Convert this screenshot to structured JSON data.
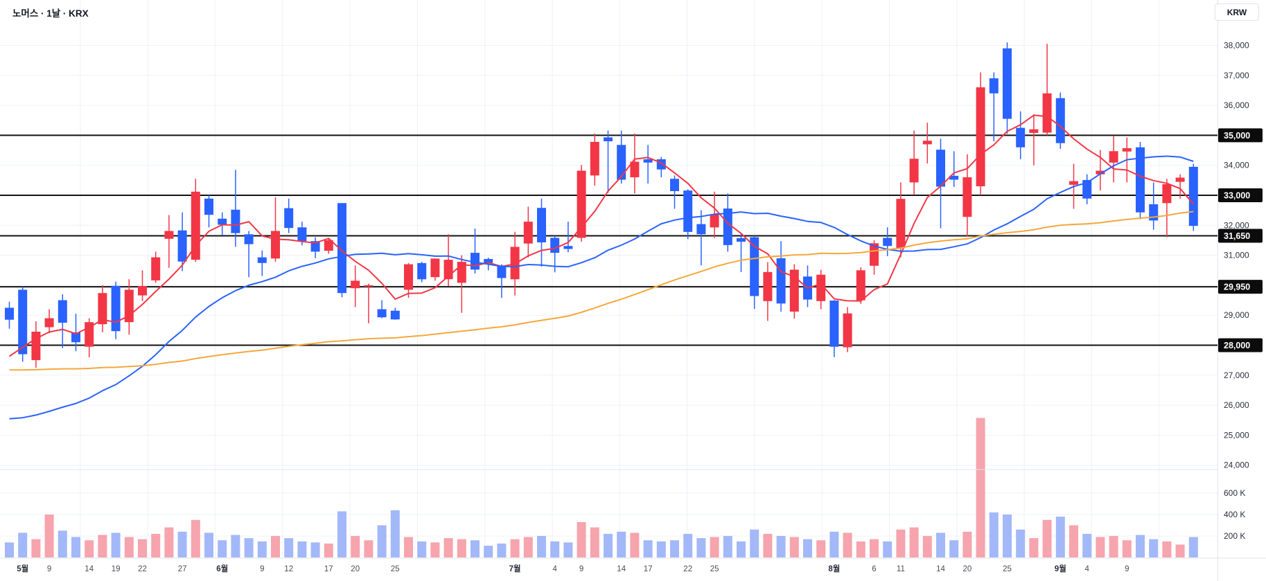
{
  "header": {
    "title": "노머스 · 1날 · KRX"
  },
  "price_axis": {
    "currency_button": "KRW",
    "ticks": [
      {
        "value": 38000,
        "label": "38,000"
      },
      {
        "value": 37000,
        "label": "37,000"
      },
      {
        "value": 36000,
        "label": "36,000"
      },
      {
        "value": 35000,
        "label": "35,000"
      },
      {
        "value": 34000,
        "label": "34,000"
      },
      {
        "value": 33000,
        "label": "33,000"
      },
      {
        "value": 32000,
        "label": "32,000"
      },
      {
        "value": 31000,
        "label": "31,000"
      },
      {
        "value": 29000,
        "label": "29,000"
      },
      {
        "value": 28000,
        "label": "28,000"
      },
      {
        "value": 27000,
        "label": "27,000"
      },
      {
        "value": 26000,
        "label": "26,000"
      },
      {
        "value": 25000,
        "label": "25,000"
      },
      {
        "value": 24000,
        "label": "24,000"
      }
    ]
  },
  "volume_axis": {
    "ticks": [
      {
        "value": 600,
        "label": "600 K"
      },
      {
        "value": 400,
        "label": "400 K"
      },
      {
        "value": 200,
        "label": "200 K"
      }
    ]
  },
  "chart_data": {
    "type": "candlestick+volume",
    "symbol": "노머스",
    "interval": "1날",
    "exchange": "KRX",
    "currency": "KRW",
    "price_range": [
      24000,
      38000
    ],
    "grid": true,
    "horizontal_levels": [
      {
        "value": 35000,
        "label": "35,000"
      },
      {
        "value": 33000,
        "label": "33,000"
      },
      {
        "value": 31650,
        "label": "31,650"
      },
      {
        "value": 29950,
        "label": "29,950"
      },
      {
        "value": 28000,
        "label": "28,000"
      }
    ],
    "x_labels": [
      {
        "index": 1,
        "text": "5월",
        "bold": true
      },
      {
        "index": 3,
        "text": "9"
      },
      {
        "index": 6,
        "text": "14"
      },
      {
        "index": 8,
        "text": "19"
      },
      {
        "index": 10,
        "text": "22"
      },
      {
        "index": 13,
        "text": "27"
      },
      {
        "index": 16,
        "text": "6월",
        "bold": true
      },
      {
        "index": 19,
        "text": "9"
      },
      {
        "index": 21,
        "text": "12"
      },
      {
        "index": 24,
        "text": "17"
      },
      {
        "index": 26,
        "text": "20"
      },
      {
        "index": 29,
        "text": "25"
      },
      {
        "index": 38,
        "text": "7월",
        "bold": true
      },
      {
        "index": 41,
        "text": "4"
      },
      {
        "index": 43,
        "text": "9"
      },
      {
        "index": 46,
        "text": "14"
      },
      {
        "index": 48,
        "text": "17"
      },
      {
        "index": 51,
        "text": "22"
      },
      {
        "index": 53,
        "text": "25"
      },
      {
        "index": 62,
        "text": "8월",
        "bold": true
      },
      {
        "index": 65,
        "text": "6"
      },
      {
        "index": 67,
        "text": "11"
      },
      {
        "index": 70,
        "text": "14"
      },
      {
        "index": 72,
        "text": "20"
      },
      {
        "index": 75,
        "text": "25"
      },
      {
        "index": 79,
        "text": "9월",
        "bold": true
      },
      {
        "index": 81,
        "text": "4"
      },
      {
        "index": 84,
        "text": "9"
      }
    ],
    "candles_ohlcv": [
      [
        29250,
        29450,
        28550,
        28850,
        140
      ],
      [
        29850,
        29950,
        27450,
        27700,
        230
      ],
      [
        27500,
        28800,
        27250,
        28450,
        170
      ],
      [
        28600,
        29200,
        28400,
        28900,
        400
      ],
      [
        29500,
        29700,
        27900,
        28750,
        250
      ],
      [
        28430,
        29050,
        27800,
        28100,
        190
      ],
      [
        27950,
        28900,
        27600,
        28770,
        160
      ],
      [
        28700,
        30000,
        28430,
        29740,
        210
      ],
      [
        29980,
        30120,
        28200,
        28470,
        230
      ],
      [
        28770,
        30200,
        28350,
        29850,
        190
      ],
      [
        29660,
        30500,
        29470,
        29970,
        170
      ],
      [
        30160,
        31120,
        30080,
        30930,
        220
      ],
      [
        31550,
        32340,
        30580,
        31810,
        280
      ],
      [
        31830,
        32430,
        30470,
        30790,
        240
      ],
      [
        30850,
        33550,
        30780,
        33120,
        350
      ],
      [
        32890,
        33010,
        31930,
        32350,
        230
      ],
      [
        32220,
        32430,
        31660,
        32020,
        160
      ],
      [
        32520,
        33850,
        31280,
        31740,
        210
      ],
      [
        31700,
        31810,
        30270,
        31370,
        180
      ],
      [
        30930,
        31160,
        30310,
        30740,
        150
      ],
      [
        30890,
        32930,
        30780,
        31810,
        200
      ],
      [
        32570,
        32890,
        31740,
        31910,
        180
      ],
      [
        31930,
        32120,
        31330,
        31470,
        150
      ],
      [
        31470,
        31600,
        30900,
        31120,
        140
      ],
      [
        31150,
        31550,
        31050,
        31500,
        130
      ],
      [
        32740,
        32740,
        29600,
        29740,
        430
      ],
      [
        29900,
        30660,
        29270,
        30150,
        200
      ],
      [
        29950,
        30050,
        28730,
        30000,
        160
      ],
      [
        29200,
        29500,
        28900,
        28930,
        300
      ],
      [
        29150,
        29250,
        28850,
        28860,
        440
      ],
      [
        29850,
        30740,
        29580,
        30700,
        190
      ],
      [
        30740,
        30780,
        30100,
        30200,
        150
      ],
      [
        30270,
        30890,
        30150,
        30890,
        140
      ],
      [
        30200,
        31700,
        29970,
        30850,
        180
      ],
      [
        30080,
        31000,
        29080,
        30780,
        170
      ],
      [
        31080,
        31890,
        30390,
        30520,
        160
      ],
      [
        30875,
        30920,
        30500,
        30740,
        110
      ],
      [
        30660,
        30700,
        29580,
        30240,
        130
      ],
      [
        30200,
        31780,
        29660,
        31280,
        170
      ],
      [
        31390,
        32620,
        30930,
        32120,
        190
      ],
      [
        32580,
        32890,
        30620,
        31430,
        200
      ],
      [
        31580,
        31650,
        30430,
        31080,
        150
      ],
      [
        31310,
        32120,
        31100,
        31210,
        140
      ],
      [
        31580,
        34010,
        31450,
        33820,
        330
      ],
      [
        33660,
        35060,
        33320,
        34780,
        280
      ],
      [
        34930,
        35160,
        33080,
        34800,
        220
      ],
      [
        34680,
        35160,
        33390,
        33520,
        240
      ],
      [
        33600,
        35060,
        33060,
        34120,
        230
      ],
      [
        34200,
        34680,
        33390,
        34090,
        160
      ],
      [
        34200,
        34280,
        33600,
        33860,
        150
      ],
      [
        33550,
        33660,
        32550,
        33140,
        160
      ],
      [
        33160,
        33200,
        31540,
        31780,
        220
      ],
      [
        32040,
        32500,
        30660,
        31700,
        180
      ],
      [
        31930,
        33120,
        31580,
        32370,
        190
      ],
      [
        32560,
        33060,
        31120,
        31340,
        200
      ],
      [
        31570,
        31740,
        30440,
        31450,
        150
      ],
      [
        31600,
        31650,
        29210,
        29640,
        260
      ],
      [
        29470,
        30770,
        28810,
        30440,
        220
      ],
      [
        30900,
        31470,
        29120,
        29390,
        200
      ],
      [
        29120,
        30700,
        28890,
        30520,
        190
      ],
      [
        30290,
        30660,
        29270,
        29520,
        170
      ],
      [
        29470,
        30510,
        29200,
        30350,
        160
      ],
      [
        29490,
        29500,
        27600,
        27950,
        240
      ],
      [
        27930,
        29270,
        27770,
        29060,
        230
      ],
      [
        29500,
        30600,
        29380,
        30500,
        150
      ],
      [
        30650,
        31500,
        30350,
        31400,
        170
      ],
      [
        31580,
        31930,
        30970,
        31310,
        150
      ],
      [
        31240,
        33430,
        30930,
        32880,
        260
      ],
      [
        33430,
        35160,
        33010,
        34220,
        280
      ],
      [
        34700,
        35420,
        34060,
        34820,
        200
      ],
      [
        34520,
        34890,
        31900,
        33290,
        230
      ],
      [
        33650,
        34470,
        33280,
        33520,
        160
      ],
      [
        32280,
        34370,
        31620,
        33600,
        240
      ],
      [
        33300,
        37100,
        33000,
        36600,
        1300
      ],
      [
        36900,
        37100,
        34800,
        36400,
        420
      ],
      [
        37900,
        38100,
        35050,
        35550,
        400
      ],
      [
        35250,
        35800,
        34200,
        34600,
        260
      ],
      [
        35080,
        35700,
        34000,
        35200,
        180
      ],
      [
        35090,
        38050,
        35000,
        36400,
        350
      ],
      [
        36240,
        36430,
        34550,
        34740,
        380
      ],
      [
        33350,
        34050,
        32550,
        33470,
        300
      ],
      [
        33510,
        33700,
        32700,
        32890,
        220
      ],
      [
        33700,
        34510,
        33160,
        33820,
        190
      ],
      [
        34090,
        34970,
        33430,
        34470,
        200
      ],
      [
        34460,
        34930,
        33430,
        34570,
        160
      ],
      [
        34600,
        34780,
        32200,
        32430,
        210
      ],
      [
        32700,
        33430,
        31850,
        32160,
        170
      ],
      [
        32740,
        33550,
        31600,
        33370,
        150
      ],
      [
        33450,
        33700,
        32890,
        33590,
        120
      ],
      [
        33950,
        34050,
        31810,
        31980,
        190
      ]
    ],
    "volume_unit": "K",
    "ma_overlays": [
      {
        "name": "ma-fast",
        "period": 5,
        "color": "#f23645"
      },
      {
        "name": "ma-mid",
        "period": 20,
        "color": "#2962ff"
      },
      {
        "name": "ma-slow",
        "period": 60,
        "color": "#f5a73b"
      }
    ],
    "ma_seed_closes": [
      27600,
      27700,
      27800,
      27900,
      28000,
      28100,
      28000,
      27900,
      28100,
      28200,
      28300,
      28200,
      28100,
      28000,
      28200,
      28300,
      28400,
      28300,
      28200,
      28100,
      28000,
      28100,
      28200,
      28300,
      28200,
      28100,
      28000,
      27900,
      28000,
      28100,
      28200,
      28100,
      28000,
      27900,
      27800,
      27700,
      27600,
      27500,
      27400,
      27300,
      27200,
      27000,
      26700,
      26400,
      26000,
      25600,
      25200,
      24800,
      24400,
      24000,
      23600,
      23200,
      23000,
      23400,
      24200,
      25300,
      26200,
      27000,
      27800,
      28300
    ],
    "colors": {
      "up": "#f23645",
      "down": "#2962ff",
      "volume_up": "#f6a4ad",
      "volume_down": "#a3b8f8",
      "level_line": "#111111",
      "badge_bg": "#0c0c0c",
      "badge_text": "#ffffff",
      "grid": "#eef1f6",
      "axis_border": "#e0e3eb",
      "tick_text": "#2a2e39",
      "day_text": "#4a4e59"
    }
  }
}
